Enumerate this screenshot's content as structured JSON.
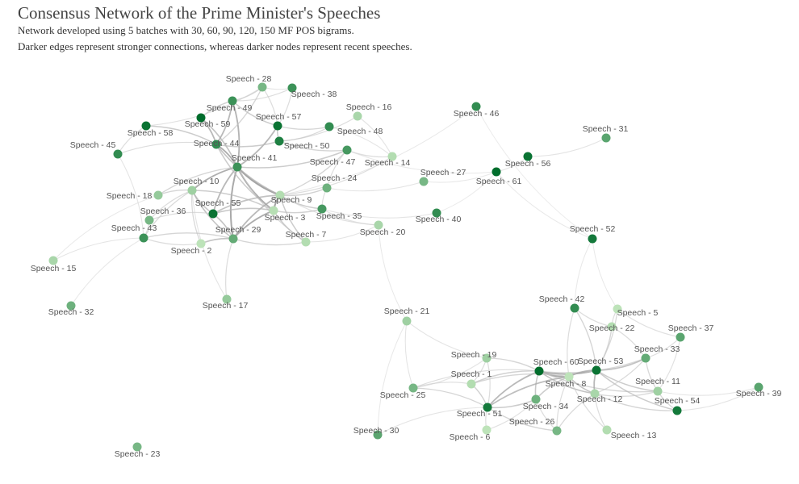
{
  "title": "Consensus Network of the Prime Minister's Speeches",
  "subtitle_1": "Network developed using 5 batches with 30, 60, 90, 120, 150 MF POS bigrams.",
  "subtitle_2": "Darker edges represent stronger connections, whereas darker nodes represent recent speeches.",
  "colors": {
    "node_light": "#c7e9c0",
    "node_dark": "#006d2c",
    "edge_light": "#e6e6e6",
    "edge_dark": "#8c8c8c"
  },
  "nodes": [
    {
      "id": 1,
      "label": "Speech - 1"
    },
    {
      "id": 2,
      "label": "Speech - 2"
    },
    {
      "id": 3,
      "label": "Speech - 3"
    },
    {
      "id": 5,
      "label": "Speech - 5"
    },
    {
      "id": 6,
      "label": "Speech - 6"
    },
    {
      "id": 7,
      "label": "Speech - 7"
    },
    {
      "id": 8,
      "label": "Speech - 8"
    },
    {
      "id": 9,
      "label": "Speech - 9"
    },
    {
      "id": 10,
      "label": "Speech - 10"
    },
    {
      "id": 11,
      "label": "Speech - 11"
    },
    {
      "id": 12,
      "label": "Speech - 12"
    },
    {
      "id": 13,
      "label": "Speech - 13"
    },
    {
      "id": 14,
      "label": "Speech - 14"
    },
    {
      "id": 15,
      "label": "Speech - 15"
    },
    {
      "id": 16,
      "label": "Speech - 16"
    },
    {
      "id": 17,
      "label": "Speech - 17"
    },
    {
      "id": 18,
      "label": "Speech - 18"
    },
    {
      "id": 19,
      "label": "Speech - 19"
    },
    {
      "id": 20,
      "label": "Speech - 20"
    },
    {
      "id": 21,
      "label": "Speech - 21"
    },
    {
      "id": 22,
      "label": "Speech - 22"
    },
    {
      "id": 23,
      "label": "Speech - 23"
    },
    {
      "id": 24,
      "label": "Speech - 24"
    },
    {
      "id": 25,
      "label": "Speech - 25"
    },
    {
      "id": 26,
      "label": "Speech - 26"
    },
    {
      "id": 27,
      "label": "Speech - 27"
    },
    {
      "id": 28,
      "label": "Speech - 28"
    },
    {
      "id": 29,
      "label": "Speech - 29"
    },
    {
      "id": 30,
      "label": "Speech - 30"
    },
    {
      "id": 31,
      "label": "Speech - 31"
    },
    {
      "id": 32,
      "label": "Speech - 32"
    },
    {
      "id": 33,
      "label": "Speech - 33"
    },
    {
      "id": 34,
      "label": "Speech - 34"
    },
    {
      "id": 35,
      "label": "Speech - 35"
    },
    {
      "id": 36,
      "label": "Speech - 36"
    },
    {
      "id": 37,
      "label": "Speech - 37"
    },
    {
      "id": 38,
      "label": "Speech - 38"
    },
    {
      "id": 39,
      "label": "Speech - 39"
    },
    {
      "id": 40,
      "label": "Speech - 40"
    },
    {
      "id": 41,
      "label": "Speech - 41"
    },
    {
      "id": 42,
      "label": "Speech - 42"
    },
    {
      "id": 43,
      "label": "Speech - 43"
    },
    {
      "id": 44,
      "label": "Speech - 44"
    },
    {
      "id": 45,
      "label": "Speech - 45"
    },
    {
      "id": 46,
      "label": "Speech - 46"
    },
    {
      "id": 47,
      "label": "Speech - 47"
    },
    {
      "id": 48,
      "label": "Speech - 48"
    },
    {
      "id": 49,
      "label": "Speech - 49"
    },
    {
      "id": 50,
      "label": "Speech - 50"
    },
    {
      "id": 51,
      "label": "Speech - 51"
    },
    {
      "id": 52,
      "label": "Speech - 52"
    },
    {
      "id": 53,
      "label": "Speech - 53"
    },
    {
      "id": 54,
      "label": "Speech - 54"
    },
    {
      "id": 55,
      "label": "Speech - 55"
    },
    {
      "id": 56,
      "label": "Speech - 56"
    },
    {
      "id": 57,
      "label": "Speech - 57"
    },
    {
      "id": 58,
      "label": "Speech - 58"
    },
    {
      "id": 59,
      "label": "Speech - 59"
    },
    {
      "id": 60,
      "label": "Speech - 60"
    },
    {
      "id": 61,
      "label": "Speech - 61"
    }
  ]
}
